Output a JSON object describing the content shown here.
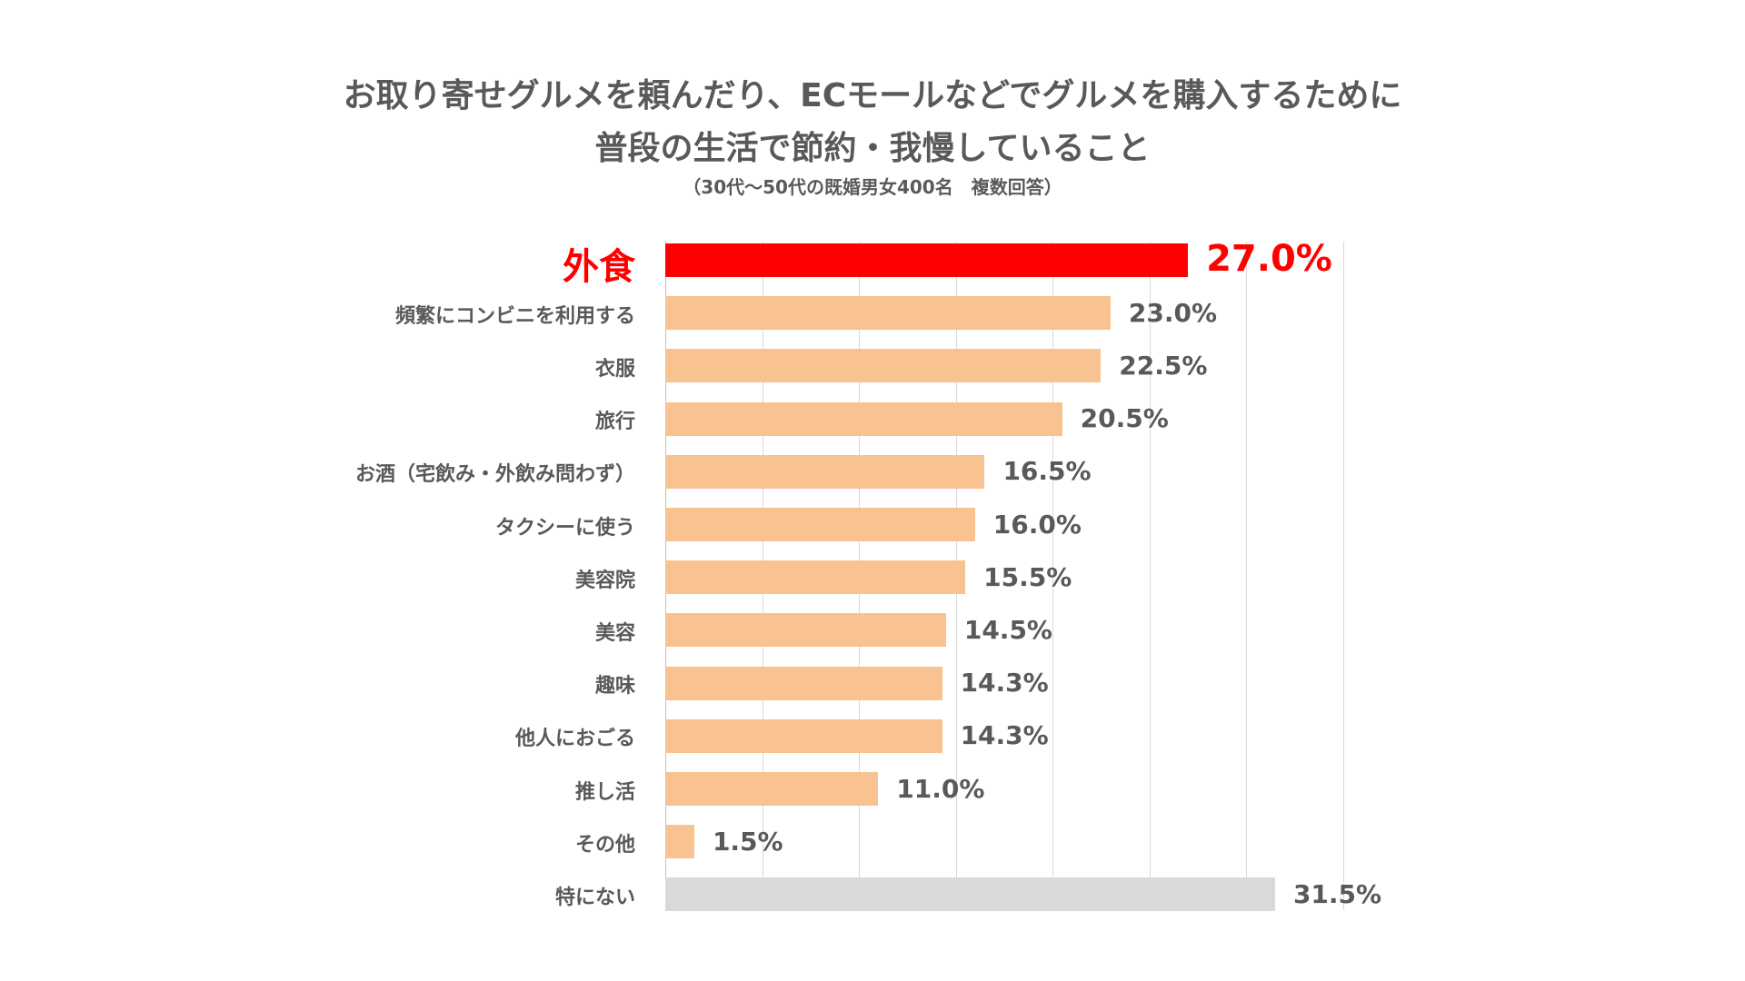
{
  "chart_data": {
    "type": "bar",
    "orientation": "horizontal",
    "title": "お取り寄せグルメを頼んだり、ECモールなどでグルメを購入するために",
    "title_line2": "普段の生活で節約・我慢していること",
    "subtitle": "（30代〜50代の既婚男女400名　複数回答）",
    "categories": [
      "外食",
      "頻繁にコンビニを利用する",
      "衣服",
      "旅行",
      "お酒（宅飲み・外飲み問わず）",
      "タクシーに使う",
      "美容院",
      "美容",
      "趣味",
      "他人におごる",
      "推し活",
      "その他",
      "特にない"
    ],
    "values": [
      27.0,
      23.0,
      22.5,
      20.5,
      16.5,
      16.0,
      15.5,
      14.5,
      14.3,
      14.3,
      11.0,
      1.5,
      31.5
    ],
    "value_labels": [
      "27.0%",
      "23.0%",
      "22.5%",
      "20.5%",
      "16.5%",
      "16.0%",
      "15.5%",
      "14.5%",
      "14.3%",
      "14.3%",
      "11.0%",
      "1.5%",
      "31.5%"
    ],
    "unit": "%",
    "xlim": [
      0,
      35
    ],
    "grid_step": 5,
    "grid": true,
    "tick_labels_shown": false,
    "highlight_index": 0,
    "colors": {
      "highlight": "#ff0000",
      "default": "#f8c291",
      "none": "#d9d9d9",
      "text": "#595959",
      "grid": "#d9d9d9"
    }
  }
}
